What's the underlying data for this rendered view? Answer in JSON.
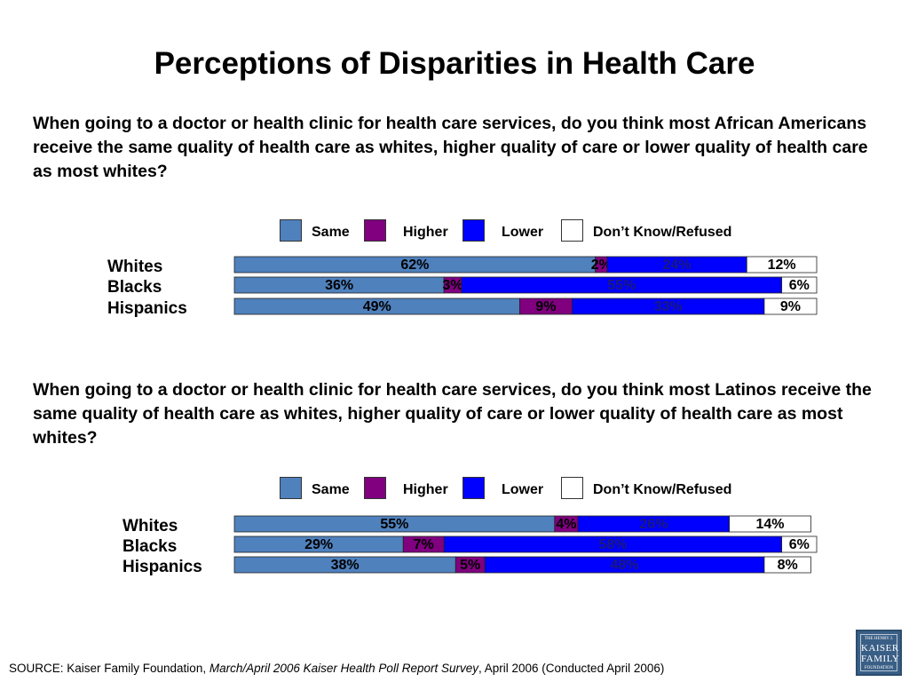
{
  "title": "Perceptions of Disparities in Health Care",
  "legend_items": [
    {
      "label": "Same",
      "color": "#4f81bd"
    },
    {
      "label": "Higher",
      "color": "#800080"
    },
    {
      "label": "Lower",
      "color": "#0000ff"
    },
    {
      "label": "Don’t Know/Refused",
      "color": "#ffffff"
    }
  ],
  "chart_data": [
    {
      "type": "bar",
      "orientation": "horizontal",
      "stacked": true,
      "question": "When going to a doctor or health clinic for health care services, do you think most African Americans receive the same quality of health care as whites, higher quality of care or lower quality of health care as most whites?",
      "categories": [
        "Whites",
        "Blacks",
        "Hispanics"
      ],
      "series": [
        {
          "name": "Same",
          "color": "#4f81bd",
          "values": [
            62,
            36,
            49
          ],
          "labels": [
            "62%",
            "36%",
            "49%"
          ]
        },
        {
          "name": "Higher",
          "color": "#800080",
          "values": [
            2,
            3,
            9
          ],
          "labels": [
            "2%",
            "3%",
            "9%"
          ]
        },
        {
          "name": "Lower",
          "color": "#0000ff",
          "values": [
            24,
            55,
            33
          ],
          "labels": [
            "24%",
            "55%",
            "33%"
          ]
        },
        {
          "name": "Don’t Know/Refused",
          "color": "#ffffff",
          "values": [
            12,
            6,
            9
          ],
          "labels": [
            "12%",
            "6%",
            "9%"
          ]
        }
      ],
      "xlim": [
        0,
        100
      ],
      "legend": "top"
    },
    {
      "type": "bar",
      "orientation": "horizontal",
      "stacked": true,
      "question": "When going to a doctor or health clinic for health care services, do you think most Latinos receive the same quality of health care as whites, higher quality of care or lower quality of health care as most whites?",
      "categories": [
        "Whites",
        "Blacks",
        "Hispanics"
      ],
      "series": [
        {
          "name": "Same",
          "color": "#4f81bd",
          "values": [
            55,
            29,
            38
          ],
          "labels": [
            "55%",
            "29%",
            "38%"
          ]
        },
        {
          "name": "Higher",
          "color": "#800080",
          "values": [
            4,
            7,
            5
          ],
          "labels": [
            "4%",
            "7%",
            "5%"
          ]
        },
        {
          "name": "Lower",
          "color": "#0000ff",
          "values": [
            26,
            58,
            48
          ],
          "labels": [
            "26%",
            "58%",
            "48%"
          ]
        },
        {
          "name": "Don’t Know/Refused",
          "color": "#ffffff",
          "values": [
            14,
            6,
            8
          ],
          "labels": [
            "14%",
            "6%",
            "8%"
          ]
        }
      ],
      "xlim": [
        0,
        100
      ],
      "legend": "top"
    }
  ],
  "source": {
    "prefix": "SOURCE: Kaiser Family Foundation, ",
    "italic": "March/April 2006 Kaiser Health Poll Report Survey",
    "suffix": ", April 2006 (Conducted April 2006)"
  },
  "logo": {
    "line1": "THE HENRY J.",
    "line2": "KAISER",
    "line3": "FAMILY",
    "line4": "FOUNDATION"
  }
}
